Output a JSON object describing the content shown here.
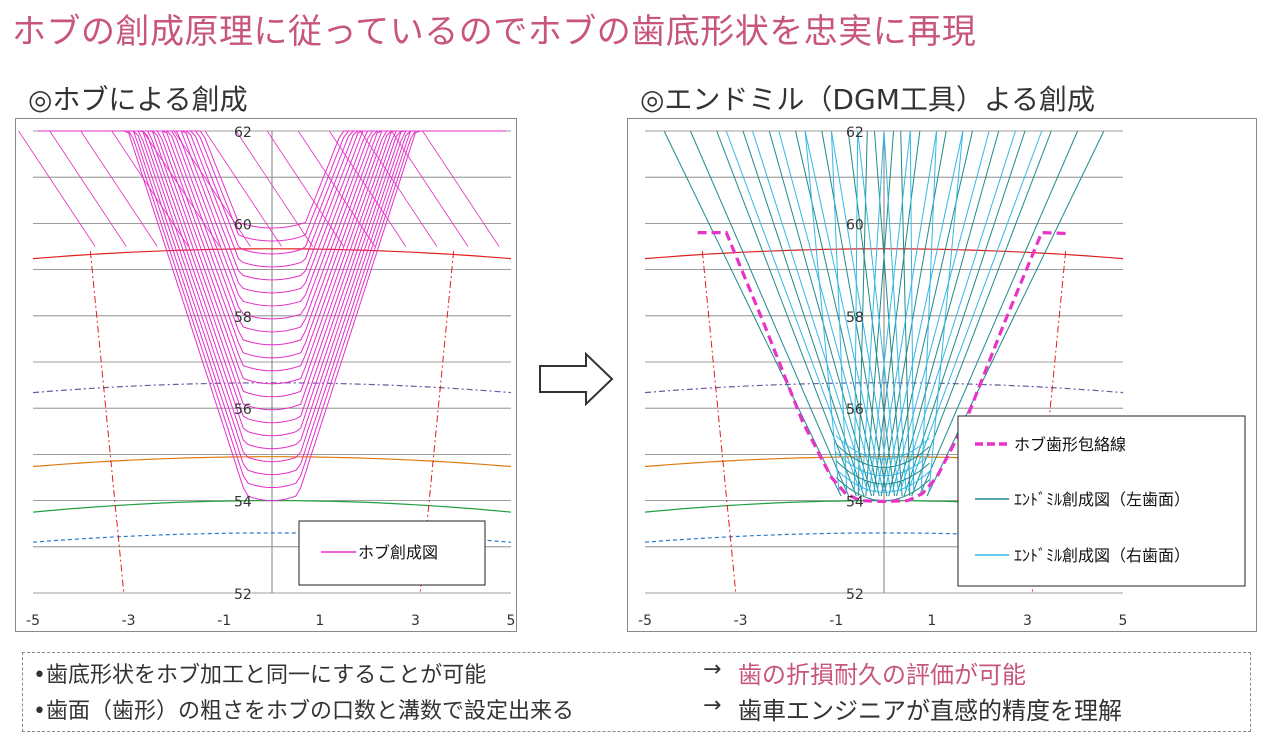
{
  "title": "ホブの創成原理に従っているのでホブの歯底形状を忠実に再現",
  "left_panel": {
    "subtitle": "◎ホブによる創成",
    "legend": "ホブ創成図"
  },
  "right_panel": {
    "subtitle": "◎エンドミル（DGM工具）よる創成",
    "legend": [
      "ホブ歯形包絡線",
      "ｴﾝﾄﾞﾐﾙ創成図（左歯面）",
      "ｴﾝﾄﾞﾐﾙ創成図（右歯面）"
    ]
  },
  "chart_data": [
    {
      "type": "line",
      "title": "ホブによる創成",
      "xlim": [
        -5,
        5
      ],
      "ylim": [
        52,
        62
      ],
      "x_ticks": [
        "-5",
        "-3",
        "-1",
        "1",
        "3",
        "5"
      ],
      "y_ticks": [
        "52",
        "54",
        "56",
        "58",
        "60",
        "62"
      ],
      "series": [
        {
          "name": "ホブ創成図",
          "color": "#e62ec8"
        }
      ]
    },
    {
      "type": "line",
      "title": "エンドミル（DGM工具）よる創成",
      "xlim": [
        -5,
        5
      ],
      "ylim": [
        52,
        62
      ],
      "x_ticks": [
        "-5",
        "-3",
        "-1",
        "1",
        "3",
        "5"
      ],
      "y_ticks": [
        "52",
        "54",
        "56",
        "58",
        "60",
        "62"
      ],
      "series": [
        {
          "name": "ホブ歯形包絡線",
          "color": "#e633c8"
        },
        {
          "name": "ｴﾝﾄﾞﾐﾙ創成図（左歯面）",
          "color": "#1f8a8a"
        },
        {
          "name": "ｴﾝﾄﾞﾐﾙ創成図（右歯面）",
          "color": "#33b8e6"
        }
      ]
    }
  ],
  "bottom": {
    "line1": "•歯底形状をホブ加工と同一にすることが可能",
    "line2": "•歯面（歯形）の粗さをホブの口数と溝数で設定出来る",
    "arrow": "→",
    "result1": "歯の折損耐久の評価が可能",
    "result2": "歯車エンジニアが直感的精度を理解"
  }
}
